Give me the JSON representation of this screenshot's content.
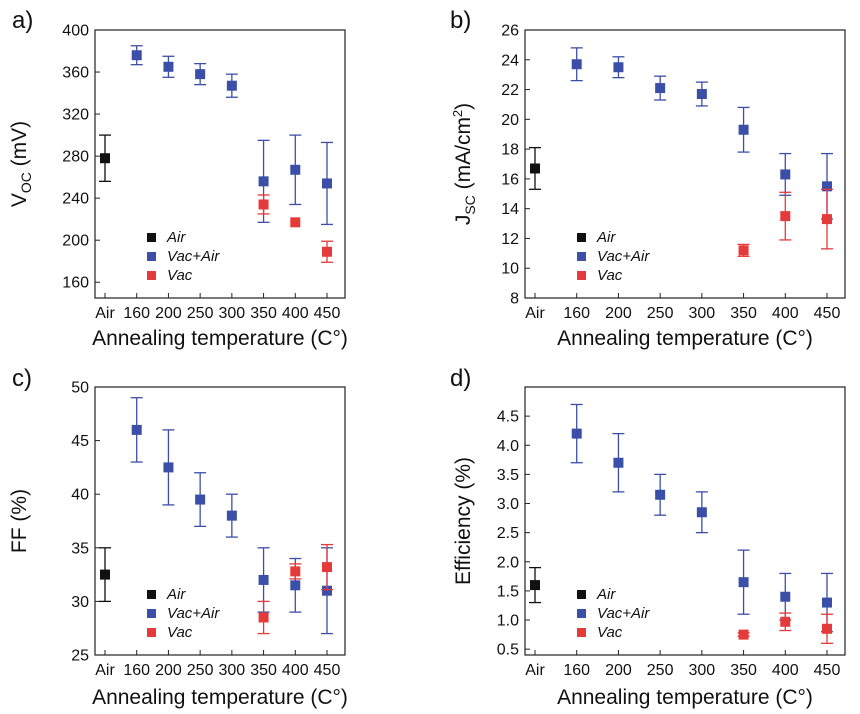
{
  "panel_labels": [
    "a)",
    "b)",
    "c)",
    "d)"
  ],
  "legend": [
    "Air",
    "Vac+Air",
    "Vac"
  ],
  "colors": {
    "Air": "#111111",
    "Vac+Air": "#3b4fa8",
    "Vac": "#e53a3a"
  },
  "chart_data": [
    {
      "type": "scatter",
      "panel": "a)",
      "title": "",
      "xlabel": "Annealing temperature (C°)",
      "ylabel": "VOC (mV)",
      "ylabel_parts": {
        "main": "V",
        "sub": "OC",
        "rest": " (mV)"
      },
      "categories": [
        "Air",
        "160",
        "200",
        "250",
        "300",
        "350",
        "400",
        "450"
      ],
      "ylim": [
        145,
        400
      ],
      "yticks": [
        "160",
        "200",
        "240",
        "280",
        "320",
        "360",
        "400"
      ],
      "legend_position": "bottom-left",
      "series": [
        {
          "name": "Air",
          "points": [
            {
              "x": "Air",
              "y": 278,
              "err": 22
            }
          ]
        },
        {
          "name": "Vac+Air",
          "points": [
            {
              "x": "160",
              "y": 376,
              "err": 9
            },
            {
              "x": "200",
              "y": 365,
              "err": 10
            },
            {
              "x": "250",
              "y": 358,
              "err": 10
            },
            {
              "x": "300",
              "y": 347,
              "err": 11
            },
            {
              "x": "350",
              "y": 256,
              "err": 39
            },
            {
              "x": "400",
              "y": 267,
              "err": 33
            },
            {
              "x": "450",
              "y": 254,
              "err": 39
            }
          ]
        },
        {
          "name": "Vac",
          "points": [
            {
              "x": "350",
              "y": 234,
              "err": 9
            },
            {
              "x": "400",
              "y": 217,
              "err": 0
            },
            {
              "x": "450",
              "y": 189,
              "err": 10
            }
          ]
        }
      ]
    },
    {
      "type": "scatter",
      "panel": "b)",
      "title": "",
      "xlabel": "Annealing temperature (C°)",
      "ylabel": "JSC (mA/cm2)",
      "ylabel_parts": {
        "main": "J",
        "sub": "SC",
        "rest": " (mA/cm",
        "sup": "2",
        "end": ")"
      },
      "categories": [
        "Air",
        "160",
        "200",
        "250",
        "300",
        "350",
        "400",
        "450"
      ],
      "ylim": [
        8,
        26
      ],
      "yticks": [
        "8",
        "10",
        "12",
        "14",
        "16",
        "18",
        "20",
        "22",
        "24",
        "26"
      ],
      "legend_position": "bottom-left",
      "series": [
        {
          "name": "Air",
          "points": [
            {
              "x": "Air",
              "y": 16.7,
              "err": 1.4
            }
          ]
        },
        {
          "name": "Vac+Air",
          "points": [
            {
              "x": "160",
              "y": 23.7,
              "err": 1.1
            },
            {
              "x": "200",
              "y": 23.5,
              "err": 0.7
            },
            {
              "x": "250",
              "y": 22.1,
              "err": 0.8
            },
            {
              "x": "300",
              "y": 21.7,
              "err": 0.8
            },
            {
              "x": "350",
              "y": 19.3,
              "err": 1.5
            },
            {
              "x": "400",
              "y": 16.3,
              "err": 1.4
            },
            {
              "x": "450",
              "y": 15.5,
              "err": 2.2
            }
          ]
        },
        {
          "name": "Vac",
          "points": [
            {
              "x": "350",
              "y": 11.2,
              "err": 0.4
            },
            {
              "x": "400",
              "y": 13.5,
              "err": 1.6
            },
            {
              "x": "450",
              "y": 13.3,
              "err": 2.0
            }
          ]
        }
      ]
    },
    {
      "type": "scatter",
      "panel": "c)",
      "title": "",
      "xlabel": "Annealing temperature (C°)",
      "ylabel": "FF (%)",
      "ylabel_parts": {
        "main": "FF (%)"
      },
      "categories": [
        "Air",
        "160",
        "200",
        "250",
        "300",
        "350",
        "400",
        "450"
      ],
      "ylim": [
        25,
        50
      ],
      "yticks": [
        "25",
        "30",
        "35",
        "40",
        "45",
        "50"
      ],
      "legend_position": "bottom-left",
      "series": [
        {
          "name": "Air",
          "points": [
            {
              "x": "Air",
              "y": 32.5,
              "err": 2.5
            }
          ]
        },
        {
          "name": "Vac+Air",
          "points": [
            {
              "x": "160",
              "y": 46.0,
              "err": 3.0
            },
            {
              "x": "200",
              "y": 42.5,
              "err": 3.5
            },
            {
              "x": "250",
              "y": 39.5,
              "err": 2.5
            },
            {
              "x": "300",
              "y": 38.0,
              "err": 2.0
            },
            {
              "x": "350",
              "y": 32.0,
              "err": 3.0
            },
            {
              "x": "400",
              "y": 31.5,
              "err": 2.5
            },
            {
              "x": "450",
              "y": 31.0,
              "err": 4.0
            }
          ]
        },
        {
          "name": "Vac",
          "points": [
            {
              "x": "350",
              "y": 28.5,
              "err": 1.5
            },
            {
              "x": "400",
              "y": 32.8,
              "err": 0.7
            },
            {
              "x": "450",
              "y": 33.2,
              "err": 2.1
            }
          ]
        }
      ]
    },
    {
      "type": "scatter",
      "panel": "d)",
      "title": "",
      "xlabel": "Annealing temperature (C°)",
      "ylabel": "Efficiency (%)",
      "ylabel_parts": {
        "main": "Efficiency (%)"
      },
      "categories": [
        "Air",
        "160",
        "200",
        "250",
        "300",
        "350",
        "400",
        "450"
      ],
      "ylim": [
        0.4,
        5.0
      ],
      "yticks": [
        "0.5",
        "1.0",
        "1.5",
        "2.0",
        "2.5",
        "3.0",
        "3.5",
        "4.0",
        "4.5"
      ],
      "legend_position": "bottom-left",
      "series": [
        {
          "name": "Air",
          "points": [
            {
              "x": "Air",
              "y": 1.6,
              "err": 0.3
            }
          ]
        },
        {
          "name": "Vac+Air",
          "points": [
            {
              "x": "160",
              "y": 4.2,
              "err": 0.5
            },
            {
              "x": "200",
              "y": 3.7,
              "err": 0.5
            },
            {
              "x": "250",
              "y": 3.15,
              "err": 0.35
            },
            {
              "x": "300",
              "y": 2.85,
              "err": 0.35
            },
            {
              "x": "350",
              "y": 1.65,
              "err": 0.55
            },
            {
              "x": "400",
              "y": 1.4,
              "err": 0.4
            },
            {
              "x": "450",
              "y": 1.3,
              "err": 0.5
            }
          ]
        },
        {
          "name": "Vac",
          "points": [
            {
              "x": "350",
              "y": 0.75,
              "err": 0.03
            },
            {
              "x": "400",
              "y": 0.97,
              "err": 0.15
            },
            {
              "x": "450",
              "y": 0.85,
              "err": 0.25
            }
          ]
        }
      ]
    }
  ]
}
